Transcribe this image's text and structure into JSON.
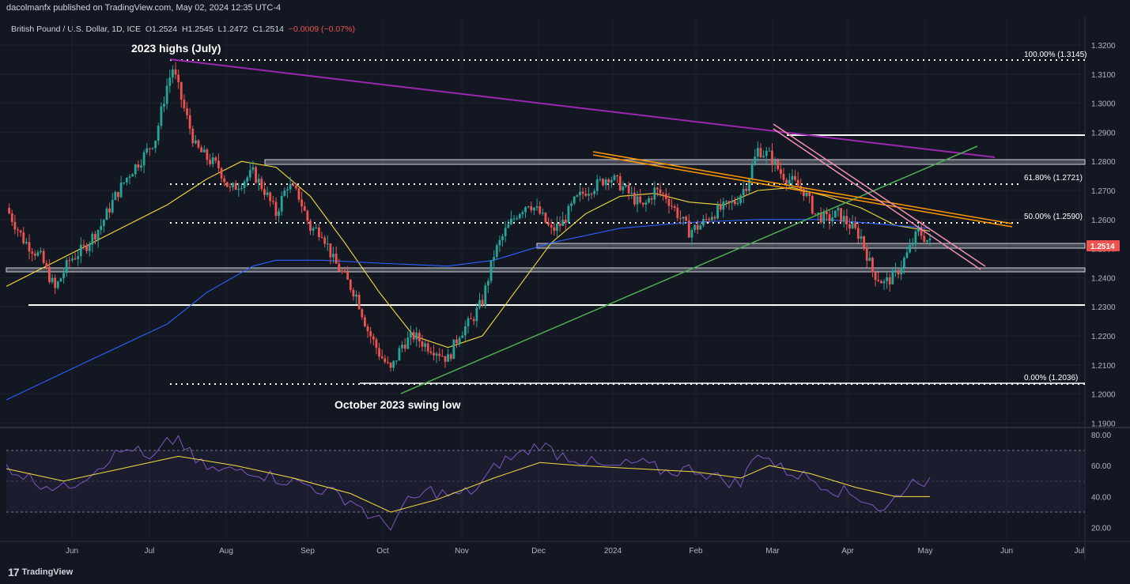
{
  "publisher_line": "dacolmanfx published on TradingView.com, May 02, 2024 12:35 UTC-4",
  "legend": {
    "symbol": "British Pound / U.S. Dollar, 1D, ICE",
    "open": "O1.2524",
    "high": "H1.2545",
    "low": "L1.2472",
    "close": "C1.2514",
    "change": "−0.0009 (−0.07%)"
  },
  "brand": {
    "logo": "17",
    "name": "TradingView"
  },
  "colors": {
    "background": "#131722",
    "bull": "#26a69a",
    "bear": "#ef5350",
    "ma50": "#f5dd3d",
    "ma200": "#2962ff",
    "trend_down": "#9c27b0",
    "trend_up": "#4caf50",
    "channel": "#ff9800",
    "wedge": "#f48fb1",
    "rsi": "#7e57c2",
    "rsi_ma": "#f5dd3d"
  },
  "chart_data": {
    "type": "candlestick",
    "title": "British Pound / U.S. Dollar, 1D, ICE",
    "ylim": [
      1.19,
      1.325
    ],
    "y_ticks": [
      "1.3200",
      "1.3100",
      "1.3000",
      "1.2900",
      "1.2800",
      "1.2700",
      "1.2600",
      "1.2500",
      "1.2400",
      "1.2300",
      "1.2200",
      "1.2100",
      "1.2000",
      "1.1900"
    ],
    "x_ticks": [
      "Jun",
      "Jul",
      "Aug",
      "Sep",
      "Oct",
      "Nov",
      "Dec",
      "2024",
      "Feb",
      "Mar",
      "Apr",
      "May",
      "Jun",
      "Jul"
    ],
    "last_price": "1.2514",
    "price_path": [
      [
        0,
        1.264
      ],
      [
        6,
        1.253
      ],
      [
        12,
        1.247
      ],
      [
        17,
        1.236
      ],
      [
        22,
        1.246
      ],
      [
        27,
        1.25
      ],
      [
        33,
        1.258
      ],
      [
        38,
        1.268
      ],
      [
        43,
        1.276
      ],
      [
        48,
        1.282
      ],
      [
        52,
        1.288
      ],
      [
        56,
        1.306
      ],
      [
        58,
        1.312
      ],
      [
        62,
        1.298
      ],
      [
        66,
        1.285
      ],
      [
        70,
        1.281
      ],
      [
        74,
        1.278
      ],
      [
        78,
        1.27
      ],
      [
        82,
        1.273
      ],
      [
        86,
        1.276
      ],
      [
        90,
        1.27
      ],
      [
        94,
        1.262
      ],
      [
        98,
        1.272
      ],
      [
        102,
        1.268
      ],
      [
        106,
        1.257
      ],
      [
        110,
        1.256
      ],
      [
        114,
        1.246
      ],
      [
        118,
        1.24
      ],
      [
        122,
        1.234
      ],
      [
        126,
        1.222
      ],
      [
        130,
        1.214
      ],
      [
        134,
        1.208
      ],
      [
        138,
        1.217
      ],
      [
        142,
        1.22
      ],
      [
        146,
        1.217
      ],
      [
        150,
        1.215
      ],
      [
        154,
        1.212
      ],
      [
        158,
        1.221
      ],
      [
        162,
        1.225
      ],
      [
        166,
        1.232
      ],
      [
        170,
        1.248
      ],
      [
        174,
        1.256
      ],
      [
        178,
        1.262
      ],
      [
        182,
        1.266
      ],
      [
        186,
        1.262
      ],
      [
        190,
        1.256
      ],
      [
        194,
        1.259
      ],
      [
        198,
        1.266
      ],
      [
        202,
        1.27
      ],
      [
        206,
        1.272
      ],
      [
        210,
        1.275
      ],
      [
        214,
        1.272
      ],
      [
        218,
        1.268
      ],
      [
        222,
        1.264
      ],
      [
        226,
        1.27
      ],
      [
        230,
        1.268
      ],
      [
        234,
        1.262
      ],
      [
        238,
        1.256
      ],
      [
        242,
        1.258
      ],
      [
        246,
        1.262
      ],
      [
        250,
        1.264
      ],
      [
        254,
        1.266
      ],
      [
        258,
        1.272
      ],
      [
        262,
        1.284
      ],
      [
        266,
        1.282
      ],
      [
        270,
        1.276
      ],
      [
        274,
        1.273
      ],
      [
        278,
        1.27
      ],
      [
        282,
        1.262
      ],
      [
        286,
        1.26
      ],
      [
        290,
        1.262
      ],
      [
        294,
        1.258
      ],
      [
        298,
        1.254
      ],
      [
        302,
        1.242
      ],
      [
        306,
        1.238
      ],
      [
        310,
        1.241
      ],
      [
        314,
        1.248
      ],
      [
        318,
        1.256
      ],
      [
        322,
        1.252
      ]
    ],
    "moving_averages": [
      {
        "name": "50-day SMA",
        "color": "#f5dd3d",
        "points": [
          [
            0,
            1.237
          ],
          [
            30,
            1.252
          ],
          [
            56,
            1.265
          ],
          [
            70,
            1.274
          ],
          [
            82,
            1.28
          ],
          [
            94,
            1.278
          ],
          [
            106,
            1.268
          ],
          [
            118,
            1.252
          ],
          [
            130,
            1.235
          ],
          [
            142,
            1.22
          ],
          [
            154,
            1.216
          ],
          [
            166,
            1.22
          ],
          [
            178,
            1.236
          ],
          [
            190,
            1.252
          ],
          [
            202,
            1.262
          ],
          [
            214,
            1.268
          ],
          [
            226,
            1.269
          ],
          [
            238,
            1.266
          ],
          [
            250,
            1.265
          ],
          [
            262,
            1.27
          ],
          [
            274,
            1.271
          ],
          [
            286,
            1.268
          ],
          [
            298,
            1.264
          ],
          [
            310,
            1.258
          ],
          [
            322,
            1.256
          ]
        ]
      },
      {
        "name": "200-day SMA",
        "color": "#2962ff",
        "points": [
          [
            0,
            1.198
          ],
          [
            30,
            1.212
          ],
          [
            56,
            1.224
          ],
          [
            70,
            1.235
          ],
          [
            86,
            1.244
          ],
          [
            94,
            1.246
          ],
          [
            110,
            1.246
          ],
          [
            130,
            1.245
          ],
          [
            154,
            1.244
          ],
          [
            170,
            1.246
          ],
          [
            190,
            1.252
          ],
          [
            214,
            1.257
          ],
          [
            238,
            1.259
          ],
          [
            262,
            1.26
          ],
          [
            286,
            1.26
          ],
          [
            310,
            1.258
          ],
          [
            322,
            1.257
          ]
        ]
      }
    ],
    "rsi": {
      "ylim": [
        15,
        85
      ],
      "y_ticks": [
        "80.00",
        "60.00",
        "40.00",
        "20.00"
      ],
      "overbought": 70,
      "oversold": 30,
      "points": [
        [
          0,
          60
        ],
        [
          10,
          50
        ],
        [
          20,
          45
        ],
        [
          28,
          54
        ],
        [
          36,
          65
        ],
        [
          44,
          72
        ],
        [
          50,
          62
        ],
        [
          56,
          74
        ],
        [
          60,
          78
        ],
        [
          66,
          62
        ],
        [
          74,
          56
        ],
        [
          84,
          58
        ],
        [
          94,
          52
        ],
        [
          104,
          48
        ],
        [
          114,
          42
        ],
        [
          122,
          36
        ],
        [
          128,
          25
        ],
        [
          134,
          22
        ],
        [
          140,
          36
        ],
        [
          148,
          44
        ],
        [
          156,
          40
        ],
        [
          164,
          45
        ],
        [
          172,
          62
        ],
        [
          180,
          68
        ],
        [
          186,
          74
        ],
        [
          192,
          68
        ],
        [
          200,
          64
        ],
        [
          210,
          58
        ],
        [
          220,
          62
        ],
        [
          230,
          56
        ],
        [
          240,
          58
        ],
        [
          248,
          52
        ],
        [
          256,
          48
        ],
        [
          262,
          70
        ],
        [
          270,
          58
        ],
        [
          280,
          52
        ],
        [
          290,
          44
        ],
        [
          300,
          38
        ],
        [
          306,
          30
        ],
        [
          312,
          44
        ],
        [
          318,
          52
        ],
        [
          322,
          49
        ]
      ],
      "ma_points": [
        [
          0,
          58
        ],
        [
          20,
          50
        ],
        [
          40,
          58
        ],
        [
          60,
          66
        ],
        [
          80,
          60
        ],
        [
          100,
          52
        ],
        [
          120,
          42
        ],
        [
          134,
          30
        ],
        [
          150,
          38
        ],
        [
          170,
          52
        ],
        [
          186,
          62
        ],
        [
          200,
          60
        ],
        [
          220,
          58
        ],
        [
          240,
          56
        ],
        [
          256,
          52
        ],
        [
          266,
          60
        ],
        [
          280,
          55
        ],
        [
          296,
          46
        ],
        [
          310,
          40
        ],
        [
          322,
          40
        ]
      ]
    }
  },
  "levels": {
    "fib_100": "100.00% (1.3145)",
    "fib_618": "61.80% (1.2721)",
    "fib_50": "50.00% (1.2590)",
    "fib_0": "0.00% (1.2036)"
  },
  "annotations": {
    "highs": "2023 highs (July)",
    "swing_low": "October 2023 swing low"
  }
}
